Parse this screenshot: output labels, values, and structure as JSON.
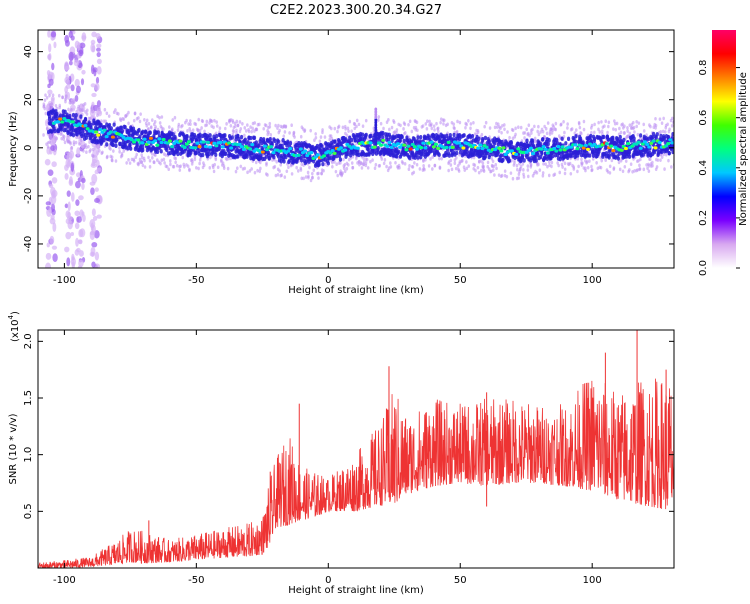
{
  "title": "C2E2.2023.300.20.34.G27",
  "colors": {
    "snr_line": "#ee3333",
    "trace_core": "#2a1fd6",
    "trace_halo": "#b98cf2",
    "axis": "#000000"
  },
  "chart_data": [
    {
      "type": "heatmap",
      "name": "spectrogram",
      "xlabel": "Height of straight line (km)",
      "ylabel": "Frequency (Hz)",
      "xlim": [
        -110,
        131
      ],
      "ylim": [
        -50,
        49
      ],
      "xticks": [
        -100,
        -50,
        0,
        50,
        100
      ],
      "xtick_labels": [
        "-100",
        "-50",
        "0",
        "50",
        "100"
      ],
      "yticks": [
        -40,
        -20,
        0,
        20,
        40
      ],
      "ytick_labels": [
        "-40",
        "-20",
        "0",
        "20",
        "40"
      ],
      "trace": {
        "x": [
          -100,
          -90,
          -80,
          -70,
          -60,
          -50,
          -40,
          -30,
          -20,
          -10,
          -5,
          0,
          10,
          20,
          30,
          40,
          50,
          60,
          70,
          80,
          90,
          100,
          110,
          120,
          130
        ],
        "frequency": [
          11,
          7,
          5,
          3,
          2,
          1,
          1,
          0,
          -1,
          -2,
          -4,
          -2,
          1,
          2,
          0,
          1,
          1,
          0,
          -2,
          -1,
          0,
          1,
          0,
          1,
          2
        ]
      },
      "spike": {
        "x": 18,
        "frequency": 16
      },
      "broadband_columns_x": [
        -105,
        -98,
        -94,
        -88
      ],
      "colorbar": {
        "label": "Normalized spectral amplitude",
        "range": [
          0,
          0.95
        ],
        "ticks": [
          0.0,
          0.2,
          0.4,
          0.6,
          0.8
        ],
        "tick_labels": [
          "0.0",
          "0.2",
          "0.4",
          "0.6",
          "0.8"
        ],
        "colors": [
          "#ffffff",
          "#d8a8f0",
          "#7a00ff",
          "#0000ff",
          "#00c8ff",
          "#00ff80",
          "#40ff00",
          "#ffff00",
          "#ff8000",
          "#ff0000",
          "#ff0066"
        ]
      }
    },
    {
      "type": "line",
      "name": "snr",
      "xlabel": "Height of straight line (km)",
      "ylabel": "SNR (10 * v/v)",
      "scale_label": "(x10",
      "scale_exponent": "4",
      "scale_close": ")",
      "xlim": [
        -110,
        131
      ],
      "ylim": [
        0,
        2.1
      ],
      "xticks": [
        -100,
        -50,
        0,
        50,
        100
      ],
      "xtick_labels": [
        "-100",
        "-50",
        "0",
        "50",
        "100"
      ],
      "yticks": [
        0.5,
        1.0,
        1.5,
        2.0
      ],
      "ytick_labels": [
        "0.5",
        "1.0",
        "1.5",
        "2.0"
      ],
      "envelope": {
        "x": [
          -110,
          -100,
          -90,
          -80,
          -75,
          -70,
          -60,
          -50,
          -40,
          -30,
          -25,
          -22,
          -20,
          -15,
          -10,
          -5,
          0,
          10,
          20,
          25,
          30,
          40,
          50,
          60,
          70,
          80,
          90,
          100,
          110,
          120,
          131
        ],
        "low": [
          0.0,
          0.0,
          0.01,
          0.03,
          0.05,
          0.04,
          0.05,
          0.07,
          0.09,
          0.1,
          0.12,
          0.2,
          0.35,
          0.38,
          0.42,
          0.45,
          0.5,
          0.5,
          0.55,
          0.55,
          0.65,
          0.72,
          0.75,
          0.72,
          0.75,
          0.75,
          0.72,
          0.68,
          0.6,
          0.55,
          0.5
        ],
        "high": [
          0.05,
          0.07,
          0.1,
          0.25,
          0.35,
          0.33,
          0.25,
          0.3,
          0.35,
          0.4,
          0.45,
          0.8,
          0.95,
          1.2,
          0.9,
          0.85,
          0.8,
          1.0,
          1.3,
          1.6,
          1.35,
          1.5,
          1.45,
          1.5,
          1.5,
          1.45,
          1.45,
          1.75,
          1.55,
          1.7,
          1.7
        ]
      },
      "peaks": [
        {
          "x": -68,
          "y": 0.42
        },
        {
          "x": -22,
          "y": 0.85
        },
        {
          "x": -11,
          "y": 1.45
        },
        {
          "x": 23,
          "y": 1.78
        },
        {
          "x": 60,
          "y": 1.55
        },
        {
          "x": 105,
          "y": 1.9
        },
        {
          "x": 117,
          "y": 2.12
        },
        {
          "x": 128,
          "y": 1.75
        }
      ]
    }
  ]
}
